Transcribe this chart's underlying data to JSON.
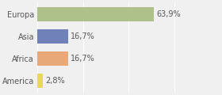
{
  "categories": [
    "Europa",
    "Asia",
    "Africa",
    "America"
  ],
  "values": [
    63.9,
    16.7,
    16.7,
    2.8
  ],
  "labels": [
    "63,9%",
    "16,7%",
    "16,7%",
    "2,8%"
  ],
  "bar_colors": [
    "#afc18a",
    "#7080b8",
    "#e8a878",
    "#e8d855"
  ],
  "background_color": "#f0f0f0",
  "xlim": [
    0,
    100
  ],
  "bar_height": 0.65,
  "label_fontsize": 7.0,
  "tick_fontsize": 7.0,
  "grid_color": "#ffffff",
  "grid_positions": [
    0,
    25,
    50,
    75,
    100
  ]
}
